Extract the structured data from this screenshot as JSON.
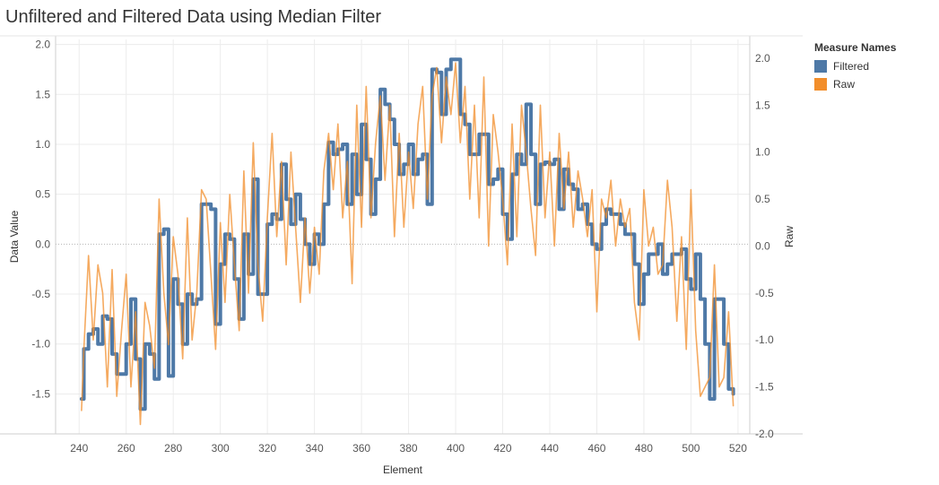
{
  "title": "Unfiltered and Filtered Data using Median Filter",
  "legend": {
    "title": "Measure Names",
    "items": [
      {
        "label": "Filtered",
        "color": "#4e79a7"
      },
      {
        "label": "Raw",
        "color": "#f28e2b"
      }
    ]
  },
  "chart_data": {
    "type": "line",
    "title": "Unfiltered and Filtered Data using Median Filter",
    "xlabel": "Element",
    "ylabel": "Data Value",
    "y2label": "Raw",
    "xlim": [
      230,
      525
    ],
    "ylim": [
      -1.9,
      2.05
    ],
    "y2lim": [
      -2.0,
      2.2
    ],
    "xticks": [
      240,
      260,
      280,
      300,
      320,
      340,
      360,
      380,
      400,
      420,
      440,
      460,
      480,
      500,
      520
    ],
    "yticks": [
      -1.5,
      -1.0,
      -0.5,
      0.0,
      0.5,
      1.0,
      1.5,
      2.0
    ],
    "y2ticks": [
      -2.0,
      -1.5,
      -1.0,
      -0.5,
      0.0,
      0.5,
      1.0,
      1.5,
      2.0
    ],
    "ytick_labels": [
      "-1.5",
      "-1.0",
      "-0.5",
      "0.0",
      "0.5",
      "1.0",
      "1.5",
      "2.0"
    ],
    "y2tick_labels": [
      "-2.0",
      "-1.5",
      "-1.0",
      "-0.5",
      "0.0",
      "0.5",
      "1.0",
      "1.5",
      "2.0"
    ],
    "grid": true,
    "legend_position": "right",
    "series": [
      {
        "name": "Filtered",
        "axis": "left",
        "color": "#4e79a7",
        "x": [
          241,
          242,
          244,
          246,
          248,
          250,
          252,
          254,
          256,
          258,
          260,
          262,
          264,
          266,
          268,
          270,
          272,
          274,
          276,
          278,
          280,
          282,
          284,
          286,
          288,
          290,
          292,
          294,
          296,
          298,
          300,
          302,
          304,
          306,
          308,
          310,
          312,
          314,
          316,
          318,
          320,
          322,
          324,
          326,
          328,
          330,
          332,
          334,
          336,
          338,
          340,
          342,
          344,
          346,
          348,
          350,
          352,
          354,
          356,
          358,
          360,
          362,
          364,
          366,
          368,
          370,
          372,
          374,
          376,
          378,
          380,
          382,
          384,
          386,
          388,
          390,
          392,
          394,
          396,
          398,
          400,
          402,
          404,
          406,
          408,
          410,
          412,
          414,
          416,
          418,
          420,
          422,
          424,
          426,
          428,
          430,
          432,
          434,
          436,
          438,
          440,
          442,
          444,
          446,
          448,
          450,
          452,
          454,
          456,
          458,
          460,
          462,
          464,
          466,
          468,
          470,
          472,
          474,
          476,
          478,
          480,
          482,
          484,
          486,
          488,
          490,
          492,
          494,
          496,
          498,
          500,
          502,
          504,
          506,
          508,
          510,
          512,
          514,
          516,
          518
        ],
        "values": [
          -1.55,
          -1.05,
          -0.9,
          -0.85,
          -1.0,
          -0.72,
          -0.75,
          -1.1,
          -1.3,
          -1.3,
          -1.0,
          -0.55,
          -1.15,
          -1.65,
          -1.0,
          -1.1,
          -1.35,
          0.1,
          0.15,
          -1.32,
          -0.35,
          -0.6,
          -1.0,
          -0.5,
          -0.6,
          -0.55,
          0.4,
          0.4,
          0.35,
          -0.8,
          -0.2,
          0.1,
          0.05,
          -0.35,
          -0.75,
          0.1,
          -0.3,
          0.65,
          -0.5,
          -0.5,
          0.2,
          0.3,
          0.25,
          0.8,
          0.45,
          0.2,
          0.5,
          0.25,
          0.0,
          -0.2,
          0.1,
          0.0,
          0.4,
          1.02,
          0.9,
          0.95,
          1.0,
          0.4,
          0.9,
          0.5,
          1.2,
          0.85,
          0.3,
          0.65,
          1.55,
          1.4,
          1.25,
          1.0,
          0.7,
          0.8,
          1.0,
          0.7,
          0.85,
          0.9,
          0.4,
          1.75,
          1.72,
          1.3,
          1.75,
          1.85,
          1.85,
          1.3,
          1.2,
          0.9,
          0.9,
          1.1,
          1.1,
          0.6,
          0.65,
          0.75,
          0.3,
          0.05,
          0.7,
          0.9,
          0.8,
          1.4,
          0.9,
          0.4,
          0.8,
          0.82,
          0.8,
          0.85,
          0.35,
          0.75,
          0.6,
          0.55,
          0.35,
          0.4,
          0.2,
          0.0,
          -0.05,
          0.2,
          0.35,
          0.3,
          0.3,
          0.2,
          0.1,
          0.1,
          -0.2,
          -0.6,
          -0.3,
          -0.1,
          -0.1,
          0.0,
          -0.3,
          -0.2,
          -0.1,
          -0.1,
          -0.05,
          -0.35,
          -0.45,
          -0.1,
          -0.55,
          -1.0,
          -1.55,
          -0.55,
          -0.55,
          -1.0,
          -1.45,
          -1.5
        ]
      },
      {
        "name": "Raw",
        "axis": "right",
        "color": "#f28e2b",
        "x": [
          241,
          242,
          244,
          246,
          248,
          250,
          252,
          254,
          256,
          258,
          260,
          262,
          264,
          266,
          268,
          270,
          272,
          274,
          276,
          278,
          280,
          282,
          284,
          286,
          288,
          290,
          292,
          294,
          296,
          298,
          300,
          302,
          304,
          306,
          308,
          310,
          312,
          314,
          316,
          318,
          320,
          322,
          324,
          326,
          328,
          330,
          332,
          334,
          336,
          338,
          340,
          342,
          344,
          346,
          348,
          350,
          352,
          354,
          356,
          358,
          360,
          362,
          364,
          366,
          368,
          370,
          372,
          374,
          376,
          378,
          380,
          382,
          384,
          386,
          388,
          390,
          392,
          394,
          396,
          398,
          400,
          402,
          404,
          406,
          408,
          410,
          412,
          414,
          416,
          418,
          420,
          422,
          424,
          426,
          428,
          430,
          432,
          434,
          436,
          438,
          440,
          442,
          444,
          446,
          448,
          450,
          452,
          454,
          456,
          458,
          460,
          462,
          464,
          466,
          468,
          470,
          472,
          474,
          476,
          478,
          480,
          482,
          484,
          486,
          488,
          490,
          492,
          494,
          496,
          498,
          500,
          502,
          504,
          506,
          508,
          510,
          512,
          514,
          516,
          518
        ],
        "values": [
          -1.75,
          -1.1,
          -0.1,
          -1.0,
          -0.2,
          -0.5,
          -1.5,
          -0.25,
          -1.6,
          -0.9,
          -0.3,
          -1.5,
          -0.7,
          -1.9,
          -0.6,
          -0.85,
          -1.3,
          0.5,
          -0.5,
          -1.05,
          0.1,
          -0.3,
          -1.2,
          0.3,
          -1.0,
          -0.5,
          0.6,
          0.5,
          -0.3,
          -1.1,
          0.25,
          -0.6,
          0.55,
          -0.2,
          -0.9,
          0.8,
          -0.5,
          1.1,
          -0.2,
          -0.8,
          0.3,
          1.2,
          0.1,
          0.9,
          -0.2,
          1.0,
          0.2,
          -0.6,
          0.3,
          -0.5,
          0.2,
          -0.3,
          0.8,
          1.2,
          0.6,
          1.3,
          0.3,
          0.9,
          -0.4,
          1.5,
          0.2,
          1.7,
          0.3,
          1.1,
          1.6,
          0.7,
          1.5,
          0.1,
          1.2,
          0.2,
          1.0,
          0.4,
          1.3,
          1.7,
          0.5,
          1.6,
          1.9,
          1.1,
          1.8,
          1.4,
          1.95,
          1.1,
          1.7,
          0.5,
          1.5,
          0.3,
          1.8,
          0.0,
          1.4,
          1.0,
          0.5,
          -0.2,
          1.3,
          0.1,
          1.5,
          1.0,
          0.4,
          -0.1,
          1.5,
          0.3,
          1.0,
          0.0,
          1.2,
          0.4,
          1.0,
          0.2,
          0.8,
          0.5,
          0.1,
          0.6,
          -0.7,
          0.5,
          0.3,
          0.7,
          0.0,
          0.5,
          0.2,
          0.4,
          -0.6,
          -1.0,
          0.6,
          0.0,
          0.2,
          -0.3,
          -0.2,
          0.7,
          0.2,
          -0.8,
          0.1,
          -1.1,
          0.6,
          -0.9,
          -1.6,
          -1.5,
          -1.4,
          -0.2,
          -1.5,
          -1.4,
          -0.7,
          -1.7
        ]
      }
    ]
  }
}
